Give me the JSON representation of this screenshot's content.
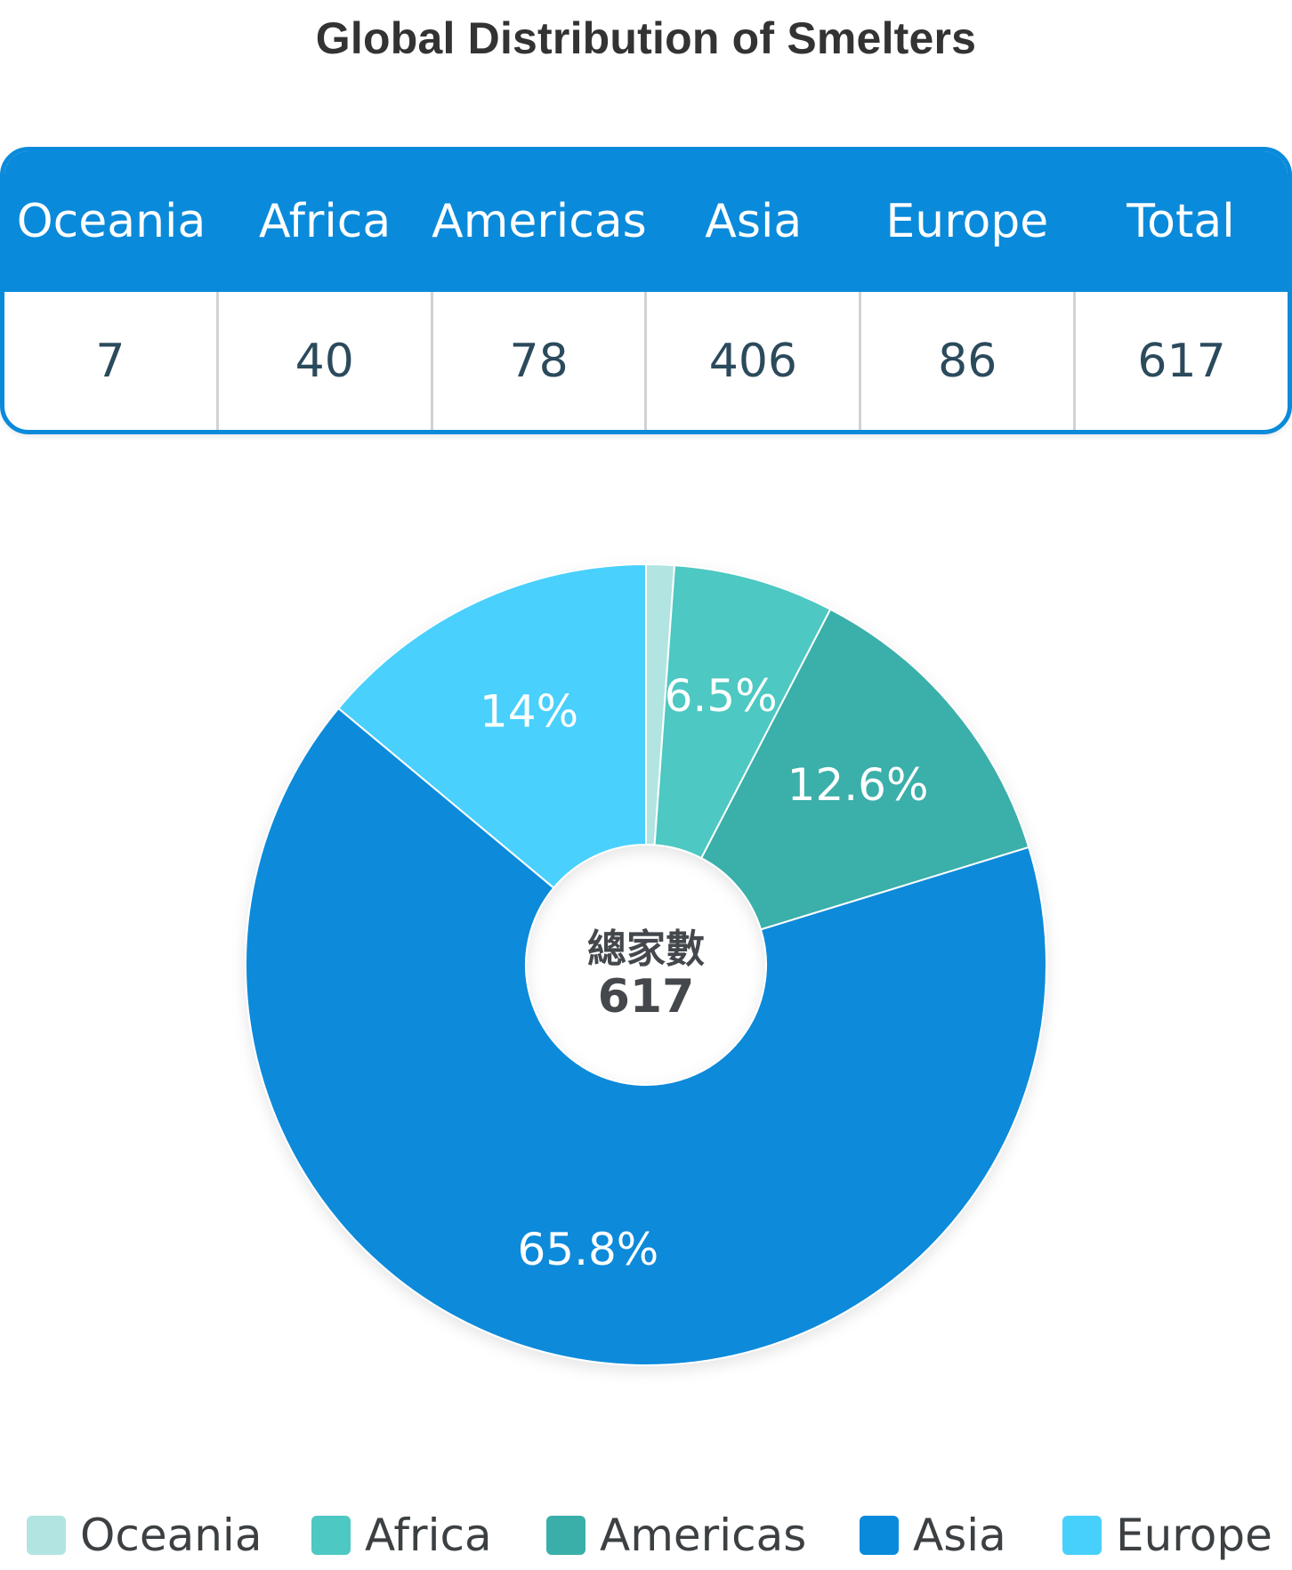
{
  "title": "Global Distribution of Smelters",
  "table": {
    "headers": [
      "Oceania",
      "Africa",
      "Americas",
      "Asia",
      "Europe",
      "Total"
    ],
    "values": [
      "7",
      "40",
      "78",
      "406",
      "86",
      "617"
    ]
  },
  "center": {
    "caption": "總家數",
    "value": "617"
  },
  "chart_data": {
    "type": "pie",
    "donut": true,
    "categories": [
      "Oceania",
      "Africa",
      "Americas",
      "Asia",
      "Europe"
    ],
    "values": [
      7,
      40,
      78,
      406,
      86
    ],
    "labels": [
      "",
      "6.5%",
      "12.6%",
      "65.8%",
      "14%"
    ],
    "colors": [
      "#b2e4e2",
      "#4dc8c2",
      "#3aafaa",
      "#0a8ada",
      "#48d0fc"
    ],
    "title": "Global Distribution of Smelters",
    "legend_position": "bottom"
  },
  "legend": [
    {
      "label": "Oceania",
      "color": "#b2e4e2"
    },
    {
      "label": "Africa",
      "color": "#4dc8c2"
    },
    {
      "label": "Americas",
      "color": "#3aafaa"
    },
    {
      "label": "Asia",
      "color": "#0a8ada"
    },
    {
      "label": "Europe",
      "color": "#48d0fc"
    }
  ]
}
